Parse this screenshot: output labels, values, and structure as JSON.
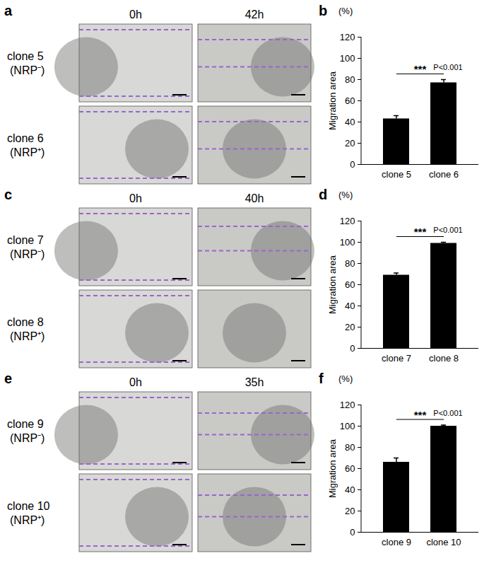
{
  "chart_data": [
    {
      "type": "bar",
      "panel": "b",
      "ylabel": "Migration area",
      "yunit": "(%)",
      "categories": [
        "clone 5",
        "clone 6"
      ],
      "values": [
        43,
        77
      ],
      "errors": [
        3,
        3
      ],
      "color": "#000000",
      "ylim": [
        0,
        120
      ],
      "yticks": [
        0,
        20,
        40,
        60,
        80,
        100,
        120
      ],
      "annotations": [
        "***",
        "P<0.001"
      ]
    },
    {
      "type": "bar",
      "panel": "d",
      "ylabel": "Migration area",
      "yunit": "(%)",
      "categories": [
        "clone 7",
        "clone 8"
      ],
      "values": [
        69,
        99
      ],
      "errors": [
        2,
        1
      ],
      "color": "#000000",
      "ylim": [
        0,
        120
      ],
      "yticks": [
        0,
        20,
        40,
        60,
        80,
        100,
        120
      ],
      "annotations": [
        "***",
        "P<0.001"
      ]
    },
    {
      "type": "bar",
      "panel": "f",
      "ylabel": "Migration area",
      "yunit": "(%)",
      "categories": [
        "clone 9",
        "clone 10"
      ],
      "values": [
        66,
        100
      ],
      "errors": [
        4,
        1
      ],
      "color": "#000000",
      "ylim": [
        0,
        120
      ],
      "yticks": [
        0,
        20,
        40,
        60,
        80,
        100,
        120
      ],
      "annotations": [
        "***",
        "P<0.001"
      ]
    }
  ],
  "image_panels": [
    {
      "panel": "a",
      "columns": [
        "0h",
        "42h"
      ],
      "rows": [
        {
          "clone": "clone 5",
          "group": "(NRP⁻)",
          "dashed": [
            true,
            true
          ]
        },
        {
          "clone": "clone 6",
          "group": "(NRP⁺)",
          "dashed": [
            true,
            true
          ]
        }
      ]
    },
    {
      "panel": "c",
      "columns": [
        "0h",
        "40h"
      ],
      "rows": [
        {
          "clone": "clone 7",
          "group": "(NRP⁻)",
          "dashed": [
            true,
            true
          ]
        },
        {
          "clone": "clone 8",
          "group": "(NRP⁺)",
          "dashed": [
            true,
            false
          ]
        }
      ]
    },
    {
      "panel": "e",
      "columns": [
        "0h",
        "35h"
      ],
      "rows": [
        {
          "clone": "clone 9",
          "group": "(NRP⁻)",
          "dashed": [
            true,
            true
          ]
        },
        {
          "clone": "clone 10",
          "group": "(NRP⁺)",
          "dashed": [
            true,
            true
          ]
        }
      ]
    }
  ]
}
